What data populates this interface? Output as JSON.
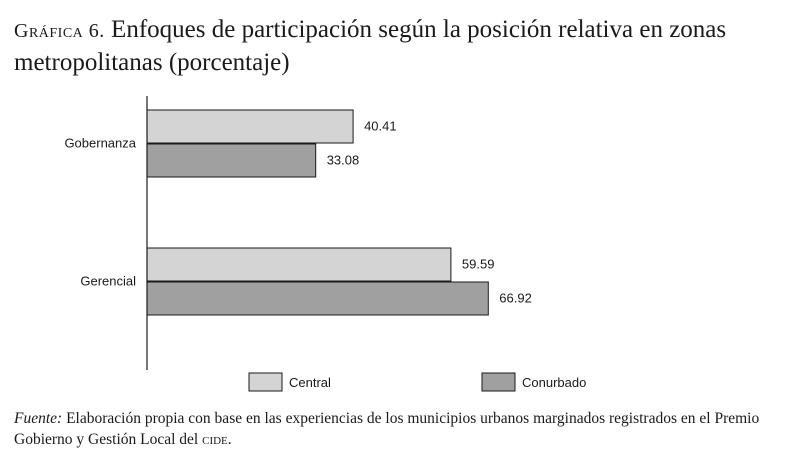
{
  "title": {
    "lead": "Gráfica 6.",
    "text": "Enfoques de participación según la posición relativa en zonas metropolitanas (porcentaje)"
  },
  "chart_data": {
    "type": "bar",
    "orientation": "horizontal",
    "categories": [
      "Gobernanza",
      "Gerencial"
    ],
    "series": [
      {
        "name": "Central",
        "values": [
          40.41,
          59.59
        ],
        "color": "#d4d4d4"
      },
      {
        "name": "Conurbado",
        "values": [
          33.08,
          66.92
        ],
        "color": "#a0a0a0"
      }
    ],
    "xlim": [
      0,
      100
    ],
    "grid": false,
    "legend": "bottom"
  },
  "source": {
    "label": "Fuente:",
    "text": "Elaboración propia con base en las experiencias de los municipios urbanos marginados registrados en el Premio Gobierno y Gestión Local del",
    "org": "cide",
    "end": "."
  }
}
